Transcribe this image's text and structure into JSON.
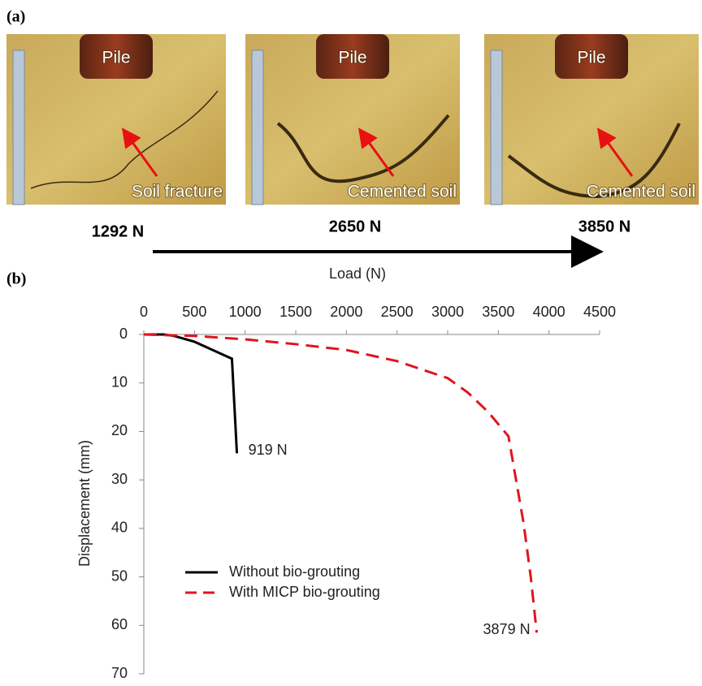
{
  "figure": {
    "panel_a_label": "(a)",
    "panel_b_label": "(b)",
    "photos": [
      {
        "pile": "Pile",
        "caption": "Soil fracture",
        "load": "1292 N"
      },
      {
        "pile": "Pile",
        "caption": "Cemented soil",
        "load": "2650 N"
      },
      {
        "pile": "Pile",
        "caption": "Cemented soil",
        "load": "3850 N"
      }
    ]
  },
  "chart_data": {
    "type": "line",
    "xlabel": "Load (N)",
    "ylabel": "Displacement (mm)",
    "xlim": [
      0,
      4500
    ],
    "xticks": [
      0,
      500,
      1000,
      1500,
      2000,
      2500,
      3000,
      3500,
      4000,
      4500
    ],
    "ylim": [
      0,
      70
    ],
    "yticks": [
      0,
      10,
      20,
      30,
      40,
      50,
      60,
      70
    ],
    "y_inverted": true,
    "x_axis_position": "top",
    "legend": "bottom-left",
    "series": [
      {
        "name": "Without bio-grouting",
        "color": "#000000",
        "dash": "solid",
        "x": [
          0,
          200,
          300,
          500,
          870,
          919
        ],
        "values": [
          0,
          0,
          0.3,
          1.5,
          5,
          24.5
        ]
      },
      {
        "name": "With MICP bio-grouting",
        "color": "#e0141e",
        "dash": "dashed",
        "x": [
          0,
          500,
          1000,
          1500,
          2000,
          2500,
          3000,
          3200,
          3400,
          3600,
          3750,
          3820,
          3879
        ],
        "values": [
          0,
          0.3,
          1,
          2,
          3.2,
          5.5,
          9,
          12,
          16,
          21,
          39,
          50,
          61.5
        ]
      }
    ],
    "annotations": [
      {
        "text": "919 N",
        "x": 919,
        "y": 24
      },
      {
        "text": "3879 N",
        "x": 3879,
        "y": 61
      }
    ]
  }
}
